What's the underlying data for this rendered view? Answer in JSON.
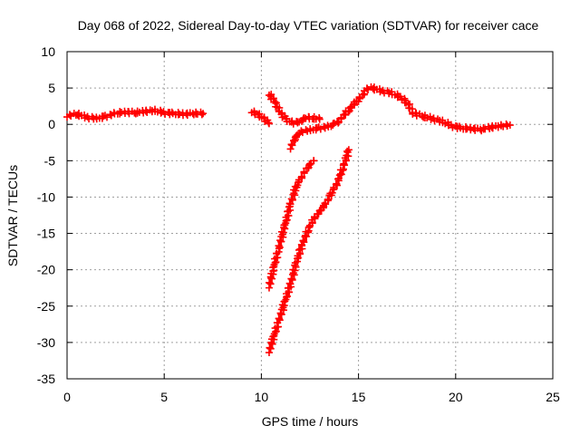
{
  "chart_data": {
    "type": "scatter",
    "title": "Day 068 of 2022, Sidereal Day-to-day VTEC variation (SDTVAR) for receiver cace",
    "xlabel": "GPS time / hours",
    "ylabel": "SDTVAR / TECUs",
    "xlim": [
      0,
      25
    ],
    "ylim": [
      -35,
      10
    ],
    "xticks": [
      0,
      5,
      10,
      15,
      20,
      25
    ],
    "yticks": [
      -35,
      -30,
      -25,
      -20,
      -15,
      -10,
      -5,
      0,
      5,
      10
    ],
    "xtick_labels": [
      "0",
      "5",
      "10",
      "15",
      "20",
      "25"
    ],
    "ytick_labels": [
      "-35",
      "-30",
      "-25",
      "-20",
      "-15",
      "-10",
      "-5",
      "0",
      "5",
      "10"
    ],
    "grid": true,
    "marker": "plus",
    "color": "#ff0000",
    "series": [
      {
        "name": "arc-1",
        "points": [
          [
            0,
            1.2
          ],
          [
            0.5,
            1.4
          ],
          [
            1.0,
            1.0
          ],
          [
            1.5,
            0.8
          ],
          [
            2.0,
            1.1
          ],
          [
            2.5,
            1.5
          ],
          [
            3.0,
            1.7
          ],
          [
            3.5,
            1.6
          ],
          [
            4.0,
            1.8
          ],
          [
            4.5,
            1.9
          ],
          [
            5.0,
            1.6
          ],
          [
            5.5,
            1.5
          ],
          [
            6.0,
            1.4
          ],
          [
            6.5,
            1.5
          ],
          [
            7.0,
            1.5
          ]
        ]
      },
      {
        "name": "arc-2",
        "points": [
          [
            9.5,
            1.8
          ],
          [
            9.8,
            1.4
          ],
          [
            10.1,
            0.9
          ],
          [
            10.4,
            0.1
          ]
        ]
      },
      {
        "name": "arc-3",
        "points": [
          [
            10.4,
            4.2
          ],
          [
            10.7,
            3.0
          ],
          [
            11.0,
            1.5
          ],
          [
            11.3,
            0.6
          ],
          [
            11.6,
            0.2
          ],
          [
            12.0,
            0.4
          ],
          [
            12.3,
            1.0
          ],
          [
            12.6,
            0.9
          ],
          [
            13.0,
            0.7
          ]
        ]
      },
      {
        "name": "arc-4",
        "points": [
          [
            11.5,
            -3.2
          ],
          [
            11.7,
            -2.0
          ],
          [
            12.0,
            -1.0
          ],
          [
            12.5,
            -0.8
          ],
          [
            13.0,
            -0.5
          ],
          [
            13.5,
            -0.3
          ],
          [
            14.0,
            0.5
          ],
          [
            14.5,
            2.0
          ],
          [
            15.0,
            3.5
          ],
          [
            15.3,
            4.2
          ]
        ]
      },
      {
        "name": "arc-5",
        "points": [
          [
            15.3,
            4.8
          ],
          [
            15.7,
            5.0
          ],
          [
            16.2,
            4.6
          ],
          [
            16.7,
            4.3
          ],
          [
            17.2,
            3.7
          ],
          [
            17.5,
            3.0
          ],
          [
            17.8,
            1.6
          ],
          [
            18.3,
            1.1
          ],
          [
            18.8,
            0.8
          ],
          [
            19.3,
            0.4
          ],
          [
            19.8,
            -0.2
          ],
          [
            20.3,
            -0.5
          ],
          [
            20.8,
            -0.6
          ],
          [
            21.3,
            -0.7
          ],
          [
            21.8,
            -0.4
          ],
          [
            22.3,
            -0.2
          ],
          [
            22.8,
            -0.1
          ]
        ]
      },
      {
        "name": "arc-6",
        "points": [
          [
            10.4,
            -22.3
          ],
          [
            10.6,
            -20.0
          ],
          [
            10.9,
            -17.0
          ],
          [
            11.2,
            -14.0
          ],
          [
            11.5,
            -11.0
          ],
          [
            11.8,
            -8.5
          ],
          [
            12.1,
            -7.0
          ],
          [
            12.4,
            -5.8
          ],
          [
            12.7,
            -5.0
          ]
        ]
      },
      {
        "name": "arc-7",
        "points": [
          [
            10.4,
            -31.2
          ],
          [
            10.6,
            -29.5
          ],
          [
            10.9,
            -27.0
          ],
          [
            11.2,
            -24.5
          ],
          [
            11.5,
            -22.0
          ],
          [
            11.8,
            -19.0
          ],
          [
            12.1,
            -16.5
          ],
          [
            12.4,
            -14.5
          ],
          [
            12.7,
            -13.0
          ],
          [
            13.0,
            -12.0
          ],
          [
            13.3,
            -11.0
          ],
          [
            13.6,
            -9.5
          ],
          [
            13.9,
            -8.0
          ],
          [
            14.2,
            -6.0
          ],
          [
            14.5,
            -3.5
          ]
        ]
      }
    ]
  }
}
